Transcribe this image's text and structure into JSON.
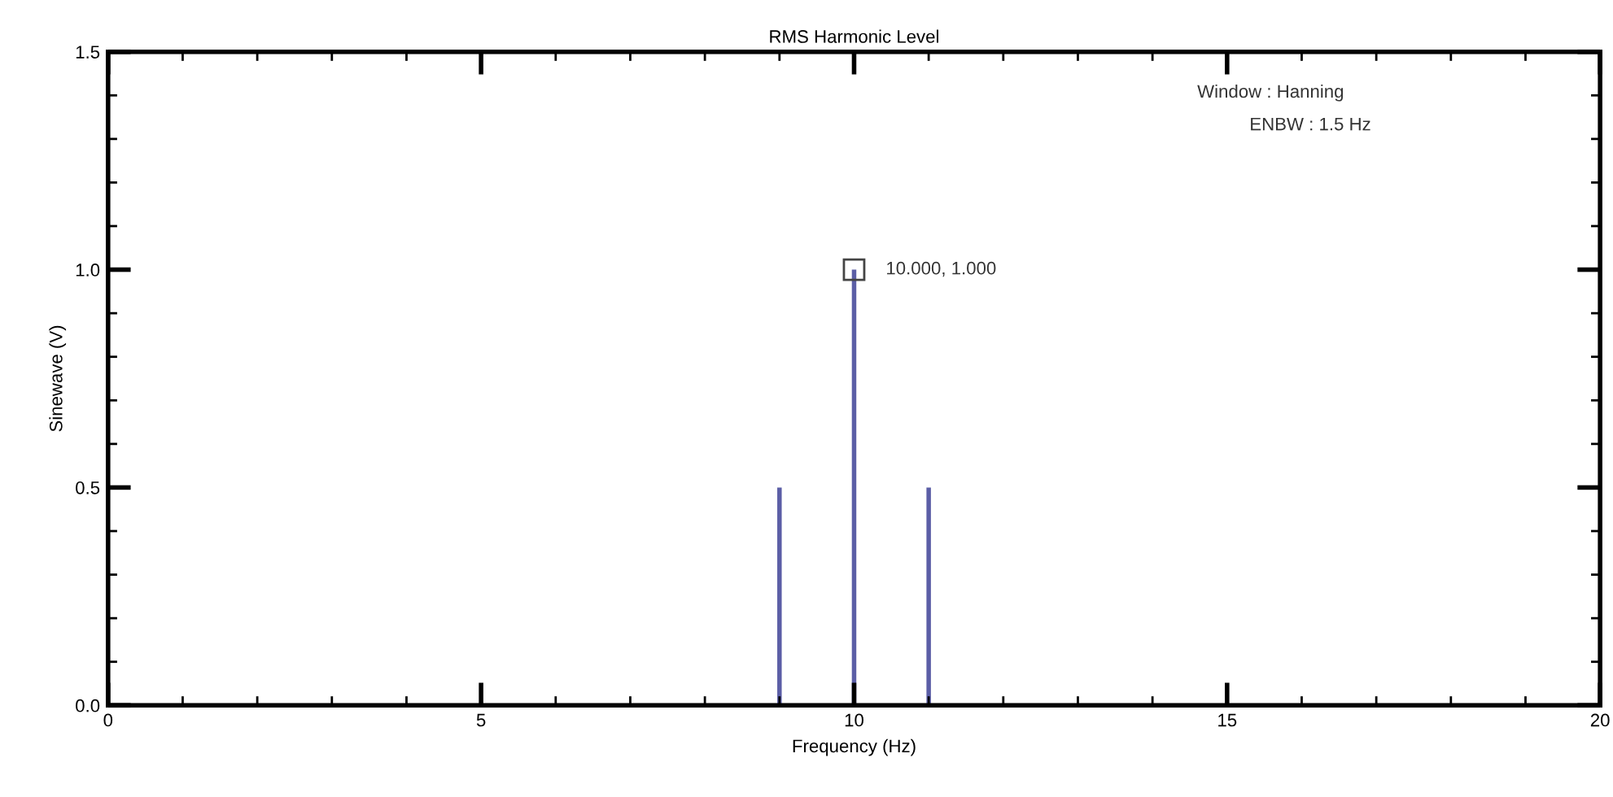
{
  "chart_data": {
    "type": "bar",
    "title": "RMS Harmonic Level",
    "xlabel": "Frequency (Hz)",
    "ylabel": "Sinewave (V)",
    "x": [
      9,
      10,
      11
    ],
    "series": [
      {
        "color": "#5b5ea6",
        "values": [
          0.5,
          1.0,
          0.5
        ]
      }
    ],
    "xlim": [
      0,
      20
    ],
    "xticks": [
      0,
      {
        "value": 1,
        "label": null
      },
      {
        "value": 2,
        "label": null
      },
      {
        "value": 3,
        "label": null
      },
      {
        "value": 4,
        "label": null
      },
      5,
      {
        "value": 6,
        "label": null
      },
      {
        "value": 7,
        "label": null
      },
      {
        "value": 8,
        "label": null
      },
      {
        "value": 9,
        "label": null
      },
      10,
      {
        "value": 11,
        "label": null
      },
      {
        "value": 12,
        "label": null
      },
      {
        "value": 13,
        "label": null
      },
      {
        "value": 14,
        "label": null
      },
      15,
      {
        "value": 16,
        "label": null
      },
      {
        "value": 17,
        "label": null
      },
      {
        "value": 18,
        "label": null
      },
      {
        "value": 19,
        "label": null
      },
      20
    ],
    "ylim": [
      0,
      1.5
    ],
    "yticks": [
      {
        "value": 0,
        "label": "0.0"
      },
      {
        "value": 0.1,
        "label": null
      },
      {
        "value": 0.2,
        "label": null
      },
      {
        "value": 0.3,
        "label": null
      },
      {
        "value": 0.4,
        "label": null
      },
      {
        "value": 0.5,
        "label": "0.5"
      },
      {
        "value": 0.6,
        "label": null
      },
      {
        "value": 0.7,
        "label": null
      },
      {
        "value": 0.8,
        "label": null
      },
      {
        "value": 0.9,
        "label": null
      },
      {
        "value": 1.0,
        "label": "1.0"
      },
      {
        "value": 1.1,
        "label": null
      },
      {
        "value": 1.2,
        "label": null
      },
      {
        "value": 1.3,
        "label": null
      },
      {
        "value": 1.4,
        "label": null
      },
      {
        "value": 1.5,
        "label": "1.5"
      }
    ],
    "grid": false,
    "legend": false,
    "annotations": [
      {
        "text": "10.000, 1.000",
        "x": 10,
        "y": 1.0
      },
      "Window : Hanning",
      "ENBW : 1.5 Hz"
    ]
  }
}
